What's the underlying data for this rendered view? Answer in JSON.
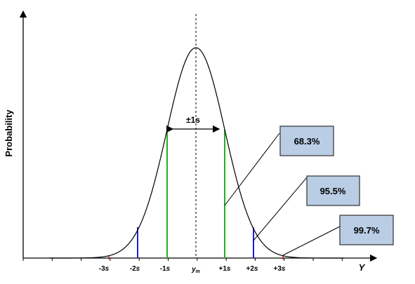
{
  "diagram": {
    "y_axis_label": "Probability",
    "x_axis_label": "Y",
    "ticks": [
      {
        "id": "minus3",
        "prefix": "-3",
        "italic": "s"
      },
      {
        "id": "minus2",
        "prefix": "-2",
        "italic": "s"
      },
      {
        "id": "minus1",
        "prefix": "-1",
        "italic": "s"
      },
      {
        "id": "mean",
        "italic": "y",
        "sub": "m"
      },
      {
        "id": "plus1",
        "prefix": "+1",
        "italic": "s"
      },
      {
        "id": "plus2",
        "prefix": "+2",
        "italic": "s"
      },
      {
        "id": "plus3",
        "prefix": "+3",
        "italic": "s"
      }
    ],
    "span_label": "±1s",
    "callouts": [
      {
        "id": "one-sigma",
        "text": "68.3%"
      },
      {
        "id": "two-sigma",
        "text": "95.5%"
      },
      {
        "id": "three-sigma",
        "text": "99.7%"
      }
    ],
    "colors": {
      "one_sigma": "#22b022",
      "two_sigma": "#1f1fd0",
      "three_sigma": "#cc2222",
      "callout_fill": "#b9cde5",
      "callout_border": "#3d3d3d"
    }
  }
}
